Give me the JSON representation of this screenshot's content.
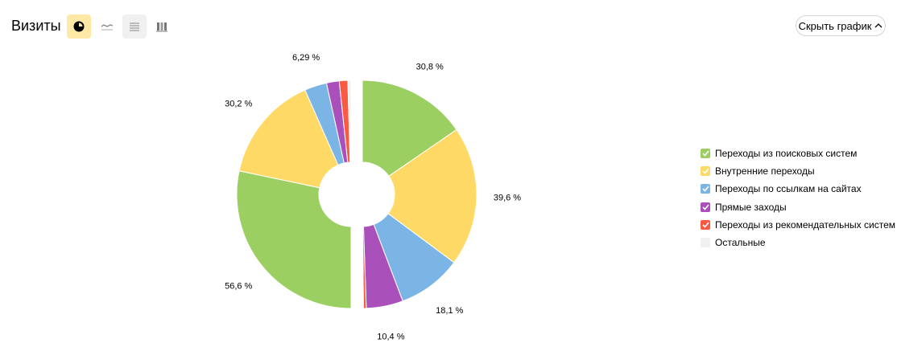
{
  "header": {
    "title": "Визиты",
    "hide_chart_label": "Скрыть график",
    "view_buttons": [
      {
        "name": "pie-view-button",
        "icon": "pie-chart-icon",
        "active": true
      },
      {
        "name": "line-view-button",
        "icon": "line-chart-icon",
        "active": false
      },
      {
        "name": "area-view-button",
        "icon": "area-chart-icon",
        "active": false
      },
      {
        "name": "bar-view-button",
        "icon": "stacked-bar-icon",
        "active": false
      }
    ]
  },
  "legend": [
    {
      "label": "Переходы из поисковых систем",
      "color": "#9ccf62",
      "checked": true
    },
    {
      "label": "Внутренние переходы",
      "color": "#ffd966",
      "checked": true
    },
    {
      "label": "Переходы по ссылкам на сайтах",
      "color": "#7ab5e6",
      "checked": true
    },
    {
      "label": "Прямые заходы",
      "color": "#a950ba",
      "checked": true
    },
    {
      "label": "Переходы из рекомендательных систем",
      "color": "#fb5a42",
      "checked": true
    },
    {
      "label": "Остальные",
      "color": "#f0f0f0",
      "checked": false
    }
  ],
  "chart_data": {
    "type": "pie",
    "charts": [
      {
        "slices": [
          {
            "category": "Переходы из поисковых систем",
            "value": 30.8,
            "label": "30,8 %",
            "color": "#9ccf62"
          },
          {
            "category": "Внутренние переходы",
            "value": 39.6,
            "label": "39,6 %",
            "color": "#ffd966"
          },
          {
            "category": "Переходы по ссылкам на сайтах",
            "value": 18.1,
            "label": "18,1 %",
            "color": "#7ab5e6"
          },
          {
            "category": "Прямые заходы",
            "value": 10.4,
            "label": "10,4 %",
            "color": "#a950ba"
          },
          {
            "category": "Переходы из рекомендательных систем",
            "value": 0.8,
            "label": "",
            "color": "#fb5a42"
          },
          {
            "category": "Остальные",
            "value": 0.3,
            "label": "",
            "color": "#f0f0f0"
          }
        ]
      },
      {
        "slices": [
          {
            "category": "Переходы из поисковых систем",
            "value": 56.6,
            "label": "56,6 %",
            "color": "#9ccf62"
          },
          {
            "category": "Внутренние переходы",
            "value": 30.2,
            "label": "30,2 %",
            "color": "#ffd966"
          },
          {
            "category": "Переходы по ссылкам на сайтах",
            "value": 6.29,
            "label": "6,29 %",
            "color": "#7ab5e6"
          },
          {
            "category": "Прямые заходы",
            "value": 3.6,
            "label": "",
            "color": "#a950ba"
          },
          {
            "category": "Переходы из рекомендательных систем",
            "value": 2.4,
            "label": "",
            "color": "#fb5a42"
          },
          {
            "category": "Остальные",
            "value": 0.91,
            "label": "",
            "color": "#f0f0f0"
          }
        ]
      }
    ]
  }
}
